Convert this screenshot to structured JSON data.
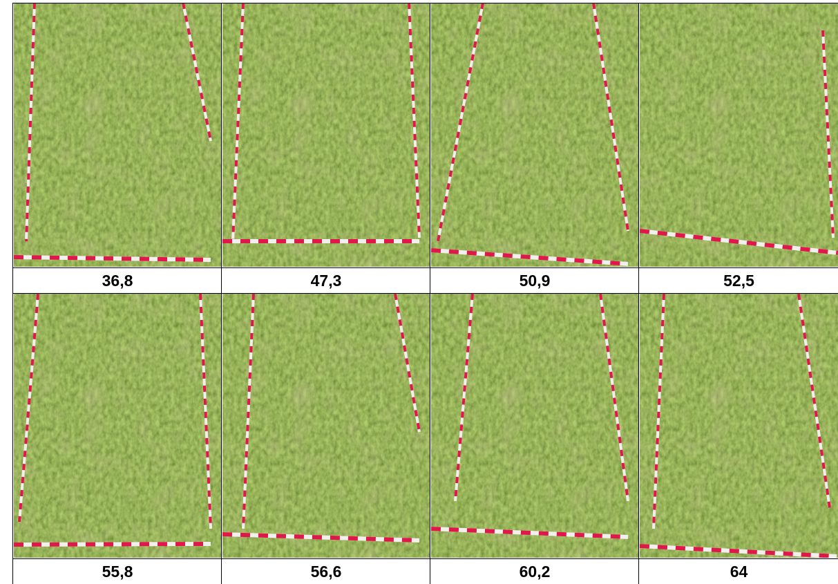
{
  "cells": [
    {
      "label": "36,8"
    },
    {
      "label": "47,3"
    },
    {
      "label": "50,9"
    },
    {
      "label": "52,5"
    },
    {
      "label": "55,8"
    },
    {
      "label": "56,6"
    },
    {
      "label": "60,2"
    },
    {
      "label": "64"
    }
  ]
}
